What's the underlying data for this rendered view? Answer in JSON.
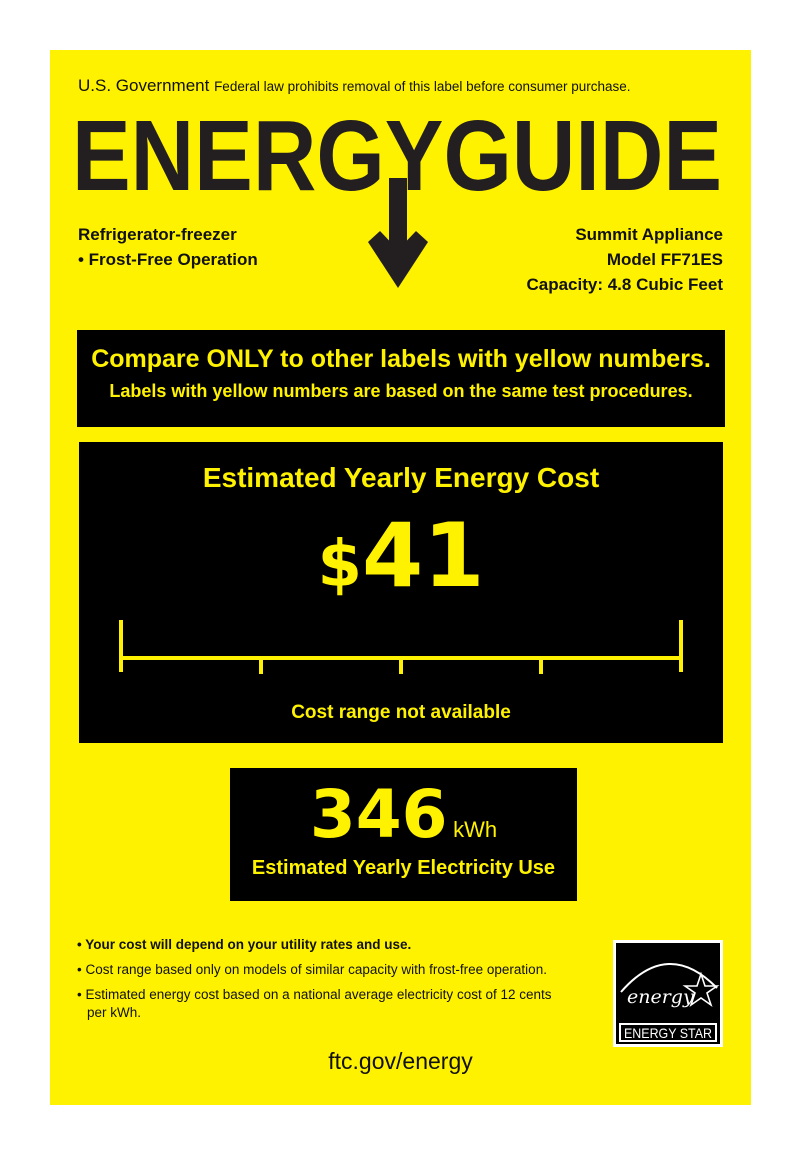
{
  "header": {
    "gov": "U.S. Government",
    "notice": "Federal law prohibits removal of this label before consumer purchase.",
    "logo_text": "ENERGYGUIDE"
  },
  "product": {
    "type": "Refrigerator-freezer",
    "feature": "• Frost-Free Operation",
    "maker": "Summit Appliance",
    "model": "Model FF71ES",
    "capacity": "Capacity: 4.8 Cubic Feet"
  },
  "compare": {
    "line1": "Compare ONLY to other labels with yellow numbers.",
    "line2": "Labels with yellow numbers are based on the same test procedures."
  },
  "cost": {
    "title": "Estimated Yearly Energy Cost",
    "currency": "$",
    "value": "41",
    "range_text": "Cost range not available"
  },
  "electricity": {
    "value": "346",
    "unit": "kWh",
    "label": "Estimated Yearly Electricity Use"
  },
  "notes": [
    "• Your cost will depend on your utility rates and use.",
    "• Cost range based only on models of similar capacity with frost-free operation.",
    "• Estimated energy cost based on a national average electricity cost of 12 cents",
    "per kWh."
  ],
  "energy_star": {
    "script": "energy",
    "label": "ENERGY STAR"
  },
  "footer": {
    "url": "ftc.gov/energy"
  },
  "colors": {
    "label_yellow": "#fff200",
    "box_black": "#000000"
  }
}
